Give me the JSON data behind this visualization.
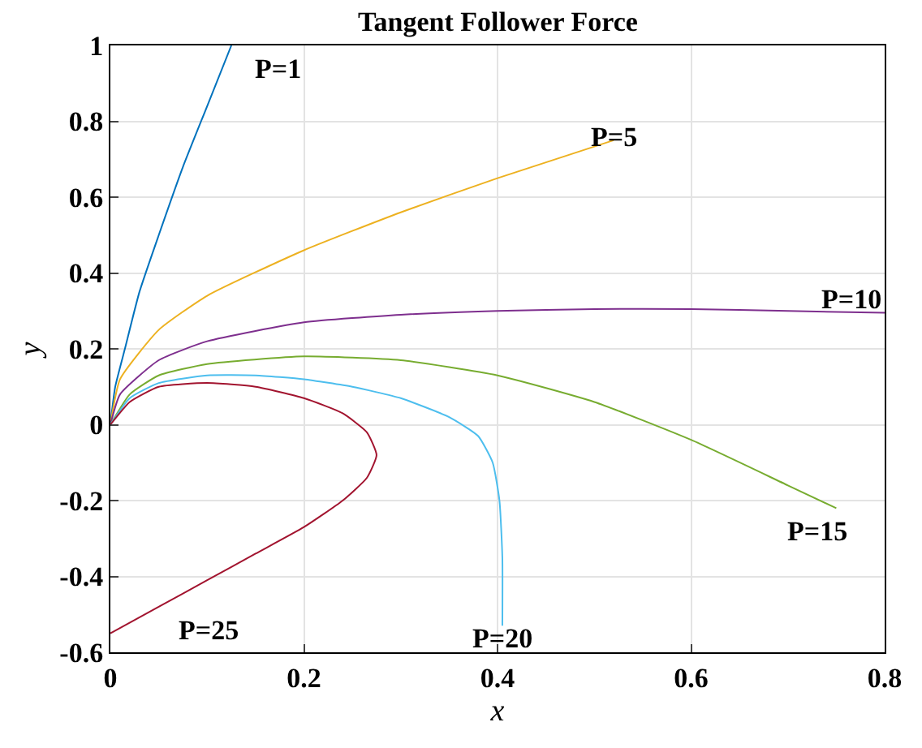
{
  "chart_data": {
    "type": "line",
    "title": "Tangent Follower Force",
    "xlabel": "x",
    "ylabel": "y",
    "xlim": [
      0,
      0.8
    ],
    "xticks": [
      0,
      0.2,
      0.4,
      0.6,
      0.8
    ],
    "ylim": [
      -0.6,
      1
    ],
    "yticks": [
      -0.6,
      -0.4,
      -0.2,
      0,
      0.2,
      0.4,
      0.6,
      0.8,
      1
    ],
    "grid": true,
    "legend": false,
    "marker": "none",
    "line_style": "solid",
    "series": [
      {
        "name": "P=1",
        "color": "#0072bd",
        "x": [
          0,
          0.005,
          0.015,
          0.03,
          0.05,
          0.075,
          0.1,
          0.125
        ],
        "values": [
          0,
          0.1,
          0.2,
          0.35,
          0.5,
          0.68,
          0.84,
          1.0
        ]
      },
      {
        "name": "P=5",
        "color": "#edb120",
        "x": [
          0,
          0.01,
          0.05,
          0.1,
          0.2,
          0.3,
          0.4,
          0.52
        ],
        "values": [
          0,
          0.12,
          0.25,
          0.34,
          0.46,
          0.56,
          0.65,
          0.75
        ]
      },
      {
        "name": "P=10",
        "color": "#7e2f8e",
        "x": [
          0,
          0.01,
          0.05,
          0.1,
          0.2,
          0.3,
          0.4,
          0.5,
          0.6,
          0.7,
          0.8
        ],
        "values": [
          0,
          0.08,
          0.17,
          0.22,
          0.27,
          0.29,
          0.3,
          0.305,
          0.305,
          0.3,
          0.295
        ]
      },
      {
        "name": "P=15",
        "color": "#77ac30",
        "x": [
          0,
          0.02,
          0.05,
          0.1,
          0.2,
          0.3,
          0.4,
          0.5,
          0.6,
          0.7,
          0.75
        ],
        "values": [
          0,
          0.08,
          0.13,
          0.16,
          0.18,
          0.17,
          0.13,
          0.06,
          -0.04,
          -0.16,
          -0.22
        ]
      },
      {
        "name": "P=20",
        "color": "#4dbeee",
        "x": [
          0,
          0.02,
          0.05,
          0.1,
          0.15,
          0.2,
          0.25,
          0.3,
          0.35,
          0.38,
          0.395,
          0.402,
          0.405,
          0.405
        ],
        "values": [
          0,
          0.07,
          0.11,
          0.13,
          0.13,
          0.12,
          0.1,
          0.07,
          0.02,
          -0.03,
          -0.1,
          -0.2,
          -0.35,
          -0.53
        ]
      },
      {
        "name": "P=25",
        "color": "#a2142f",
        "x": [
          0,
          0.02,
          0.05,
          0.1,
          0.15,
          0.2,
          0.24,
          0.265,
          0.275,
          0.265,
          0.24,
          0.2,
          0.15,
          0.1,
          0.05,
          0
        ],
        "values": [
          0,
          0.06,
          0.1,
          0.11,
          0.1,
          0.07,
          0.03,
          -0.02,
          -0.08,
          -0.14,
          -0.2,
          -0.27,
          -0.34,
          -0.41,
          -0.48,
          -0.55
        ]
      }
    ]
  }
}
